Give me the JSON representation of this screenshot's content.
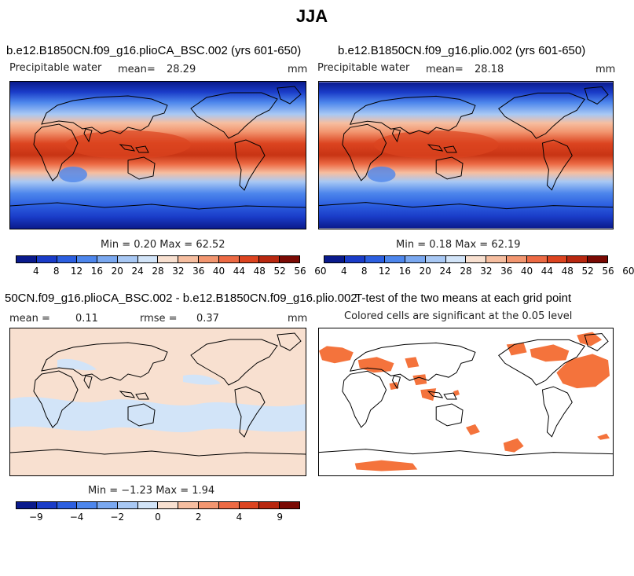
{
  "title": "JJA",
  "panels": [
    {
      "title": "b.e12.B1850CN.f09_g16.plioCA_BSC.002 (yrs 601-650)",
      "variable": "Precipitable water",
      "mean_label": "mean=",
      "mean_value": "28.29",
      "units": "mm",
      "minmax_text": "Min =   0.20 Max =  62.52"
    },
    {
      "title": "b.e12.B1850CN.f09_g16.plio.002 (yrs 601-650)",
      "variable": "Precipitable water",
      "mean_label": "mean=",
      "mean_value": "28.18",
      "units": "mm",
      "minmax_text": "Min =   0.18 Max =  62.19"
    },
    {
      "title": "50CN.f09_g16.plioCA_BSC.002 - b.e12.B1850CN.f09_g16.plio.002",
      "mean_label": "mean =",
      "mean_value": "0.11",
      "rmse_label": "rmse =",
      "rmse_value": "0.37",
      "units": "mm",
      "minmax_text": "Min =  −1.23 Max =   1.94"
    },
    {
      "title": "T-test of the two means at each grid point",
      "subtitle": "Colored cells are significant at the 0.05 level"
    }
  ],
  "colorbars": {
    "abs_colors": [
      "#0a1a8c",
      "#1a3cc8",
      "#2c5fe0",
      "#4d86ec",
      "#7aa8f0",
      "#a8c8f4",
      "#d2e4f8",
      "#f8e0d0",
      "#f6bea0",
      "#f29670",
      "#ec6a44",
      "#dc4420",
      "#b82810",
      "#7a0a04"
    ],
    "abs_ticks": [
      "4",
      "8",
      "12",
      "16",
      "20",
      "24",
      "28",
      "32",
      "36",
      "40",
      "44",
      "48",
      "52",
      "56",
      "60"
    ],
    "diff_colors": [
      "#0a1a8c",
      "#1a3cc8",
      "#2c5fe0",
      "#4d86ec",
      "#7aa8f0",
      "#a8c8f4",
      "#d2e4f8",
      "#f8e0d0",
      "#f6bea0",
      "#f29670",
      "#ec6a44",
      "#dc4420",
      "#b82810",
      "#7a0a04"
    ],
    "diff_ticks": [
      "−9",
      "−4",
      "−2",
      "0",
      "2",
      "4",
      "9"
    ],
    "significance_color": "#f4733c"
  },
  "chart_data": [
    {
      "type": "heatmap",
      "title": "b.e12.B1850CN.f09_g16.plioCA_BSC.002 (yrs 601-650)",
      "variable": "Precipitable water",
      "units": "mm",
      "mean": 28.29,
      "min": 0.2,
      "max": 62.52,
      "levels": [
        4,
        8,
        12,
        16,
        20,
        24,
        28,
        32,
        36,
        40,
        44,
        48,
        52,
        56,
        60
      ]
    },
    {
      "type": "heatmap",
      "title": "b.e12.B1850CN.f09_g16.plio.002 (yrs 601-650)",
      "variable": "Precipitable water",
      "units": "mm",
      "mean": 28.18,
      "min": 0.18,
      "max": 62.19,
      "levels": [
        4,
        8,
        12,
        16,
        20,
        24,
        28,
        32,
        36,
        40,
        44,
        48,
        52,
        56,
        60
      ]
    },
    {
      "type": "heatmap",
      "title": "50CN.f09_g16.plioCA_BSC.002 - b.e12.B1850CN.f09_g16.plio.002",
      "units": "mm",
      "mean": 0.11,
      "rmse": 0.37,
      "min": -1.23,
      "max": 1.94,
      "levels": [
        -9,
        -4,
        -2,
        0,
        2,
        4,
        9
      ]
    },
    {
      "type": "heatmap",
      "title": "T-test of the two means at each grid point",
      "subtitle": "Colored cells are significant at the 0.05 level",
      "significance_level": 0.05
    }
  ]
}
